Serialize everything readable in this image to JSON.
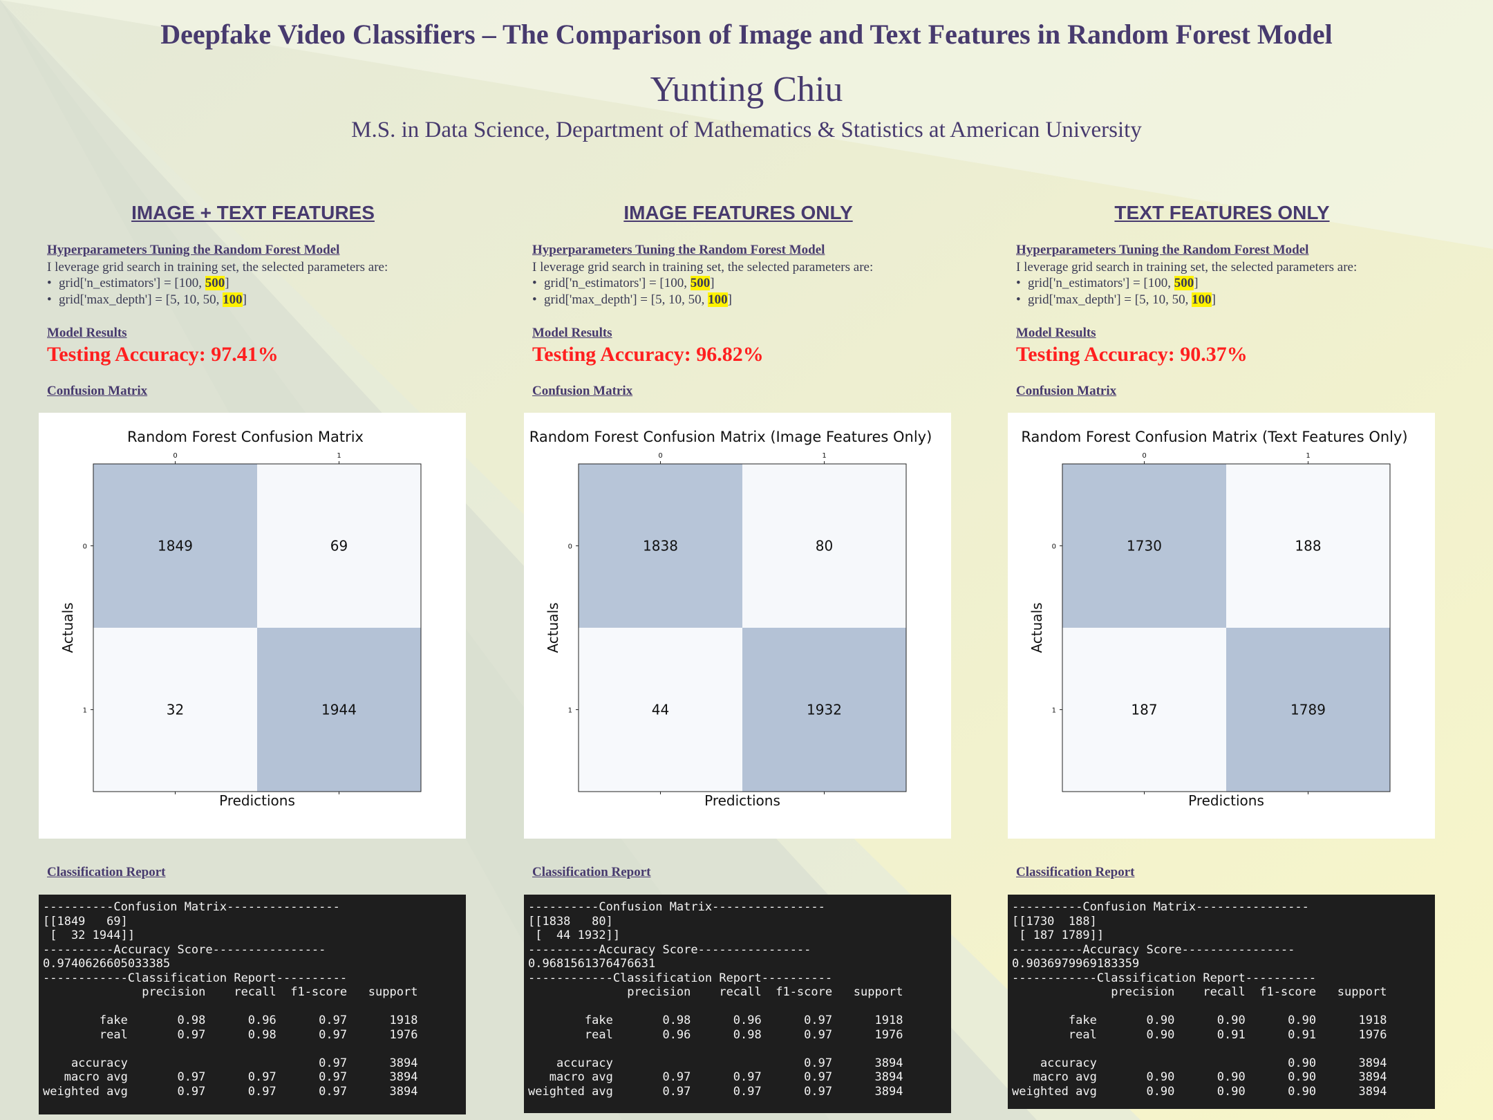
{
  "header": {
    "title": "Deepfake Video Classifiers – The Comparison of Image and Text Features in Random Forest Model",
    "author": "Yunting Chiu",
    "affiliation": "M.S. in Data Science, Department of Mathematics & Statistics at American University"
  },
  "columns": [
    {
      "heading": "IMAGE + TEXT FEATURES",
      "hp_heading": "Hyperparameters Tuning the Random Forest Model",
      "hp_text": "I leverage grid search in training set, the selected parameters are:",
      "bullets": [
        {
          "prefix": "grid['n_estimators'] = [100, ",
          "highlight": "500",
          "suffix": "]"
        },
        {
          "prefix": "grid['max_depth'] = [5, 10, 50, ",
          "highlight": "100",
          "suffix": "]"
        }
      ],
      "results_heading": "Model Results",
      "accuracy": "Testing Accuracy: 97.41%",
      "cm_heading": "Confusion Matrix",
      "report_heading": "Classification Report",
      "report_text": "----------Confusion Matrix----------------\n[[1849   69]\n [  32 1944]]\n----------Accuracy Score----------------\n0.9740626605033385\n------------Classification Report----------\n              precision    recall  f1-score   support\n\n        fake       0.98      0.96      0.97      1918\n        real       0.97      0.98      0.97      1976\n\n    accuracy                           0.97      3894\n   macro avg       0.97      0.97      0.97      3894\nweighted avg       0.97      0.97      0.97      3894"
    },
    {
      "heading": "IMAGE FEATURES ONLY",
      "hp_heading": "Hyperparameters Tuning the Random Forest Model",
      "hp_text": "I leverage grid search in training set, the selected parameters are:",
      "bullets": [
        {
          "prefix": "grid['n_estimators'] = [100, ",
          "highlight": "500",
          "suffix": "]"
        },
        {
          "prefix": "grid['max_depth'] = [5, 10, 50, ",
          "highlight": "100",
          "suffix": "]"
        }
      ],
      "results_heading": "Model Results",
      "accuracy": "Testing Accuracy: 96.82%",
      "cm_heading": "Confusion Matrix",
      "report_heading": "Classification Report",
      "report_text": "----------Confusion Matrix----------------\n[[1838   80]\n [  44 1932]]\n----------Accuracy Score----------------\n0.9681561376476631\n------------Classification Report----------\n              precision    recall  f1-score   support\n\n        fake       0.98      0.96      0.97      1918\n        real       0.96      0.98      0.97      1976\n\n    accuracy                           0.97      3894\n   macro avg       0.97      0.97      0.97      3894\nweighted avg       0.97      0.97      0.97      3894"
    },
    {
      "heading": "TEXT FEATURES ONLY",
      "hp_heading": "Hyperparameters Tuning the Random Forest Model",
      "hp_text": "I leverage grid search in training set, the selected parameters are:",
      "bullets": [
        {
          "prefix": "grid['n_estimators'] = [100, ",
          "highlight": "500",
          "suffix": "]"
        },
        {
          "prefix": "grid['max_depth'] = [5, 10, 50, ",
          "highlight": "100",
          "suffix": "]"
        }
      ],
      "results_heading": "Model Results",
      "accuracy": "Testing Accuracy: 90.37%",
      "cm_heading": "Confusion Matrix",
      "report_heading": "Classification Report",
      "report_text": "----------Confusion Matrix----------------\n[[1730  188]\n [ 187 1789]]\n----------Accuracy Score----------------\n0.9036979969183359\n------------Classification Report----------\n              precision    recall  f1-score   support\n\n        fake       0.90      0.90      0.90      1918\n        real       0.90      0.91      0.91      1976\n\n    accuracy                           0.90      3894\n   macro avg       0.90      0.90      0.90      3894\nweighted avg       0.90      0.90      0.90      3894"
    }
  ],
  "colors": {
    "title": "#473a6e",
    "accuracy": "#ff1f1f",
    "highlight": "#fff200",
    "cm_high": "#b4c2d6",
    "cm_low": "#f7f9fc"
  },
  "chart_data": [
    {
      "type": "heatmap",
      "title": "Random Forest Confusion Matrix",
      "xlabel": "Predictions",
      "ylabel": "Actuals",
      "x_ticks": [
        "0",
        "1"
      ],
      "y_ticks": [
        "0",
        "1"
      ],
      "values": [
        [
          1849,
          69
        ],
        [
          32,
          1944
        ]
      ]
    },
    {
      "type": "heatmap",
      "title": "Random Forest Confusion Matrix (Image Features Only)",
      "xlabel": "Predictions",
      "ylabel": "Actuals",
      "x_ticks": [
        "0",
        "1"
      ],
      "y_ticks": [
        "0",
        "1"
      ],
      "values": [
        [
          1838,
          80
        ],
        [
          44,
          1932
        ]
      ]
    },
    {
      "type": "heatmap",
      "title": "Random Forest Confusion Matrix (Text Features Only)",
      "xlabel": "Predictions",
      "ylabel": "Actuals",
      "x_ticks": [
        "0",
        "1"
      ],
      "y_ticks": [
        "0",
        "1"
      ],
      "values": [
        [
          1730,
          188
        ],
        [
          187,
          1789
        ]
      ]
    }
  ]
}
